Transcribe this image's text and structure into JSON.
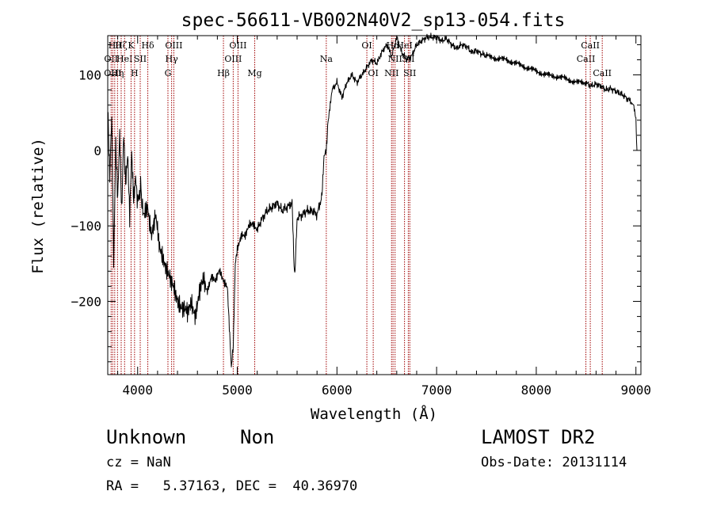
{
  "chart_data": {
    "type": "line",
    "title": "spec-56611-VB002N40V2_sp13-054.fits",
    "xlabel": "Wavelength (Å)",
    "ylabel": "Flux (relative)",
    "xlim": [
      3700,
      9050
    ],
    "ylim": [
      -297,
      152
    ],
    "xticks": [
      4000,
      5000,
      6000,
      7000,
      8000,
      9000
    ],
    "xtick_labels": [
      "4000",
      "5000",
      "6000",
      "7000",
      "8000",
      "9000"
    ],
    "yticks": [
      -200,
      -100,
      0,
      100
    ],
    "ytick_labels": [
      "−200",
      "−100",
      "0",
      "100"
    ],
    "line_color": "#000000",
    "marker_color": "#a00000",
    "grid": false,
    "series": [
      {
        "x": [
          3700,
          3720,
          3740,
          3760,
          3780,
          3800,
          3820,
          3840,
          3860,
          3880,
          3900,
          3920,
          3940,
          3960,
          3980,
          4000,
          4030,
          4060,
          4100,
          4140,
          4180,
          4220,
          4260,
          4300,
          4340,
          4380,
          4420,
          4460,
          4500,
          4540,
          4580,
          4620,
          4660,
          4700,
          4740,
          4780,
          4820,
          4860,
          4900,
          4940,
          4960,
          4980,
          5000,
          5040,
          5080,
          5120,
          5160,
          5200,
          5250,
          5300,
          5350,
          5400,
          5450,
          5500,
          5550,
          5570,
          5580,
          5590,
          5600,
          5650,
          5700,
          5750,
          5800,
          5850,
          5870,
          5890,
          5900,
          5910,
          5925,
          5950,
          6000,
          6050,
          6100,
          6150,
          6200,
          6250,
          6300,
          6350,
          6400,
          6450,
          6500,
          6550,
          6600,
          6650,
          6700,
          6750,
          6800,
          6850,
          6900,
          6950,
          7000,
          7050,
          7100,
          7150,
          7200,
          7250,
          7300,
          7350,
          7400,
          7450,
          7500,
          7600,
          7700,
          7800,
          7900,
          8000,
          8100,
          8200,
          8300,
          8400,
          8500,
          8550,
          8600,
          8650,
          8700,
          8750,
          8800,
          8850,
          8900,
          8950,
          8975,
          9000,
          9010
        ],
        "y": [
          60,
          -40,
          40,
          -150,
          10,
          -60,
          30,
          -80,
          20,
          -50,
          -10,
          -90,
          0,
          -60,
          -30,
          -70,
          -50,
          -90,
          -70,
          -110,
          -90,
          -130,
          -140,
          -160,
          -180,
          -190,
          -200,
          -210,
          -220,
          -200,
          -215,
          -190,
          -175,
          -185,
          -165,
          -175,
          -160,
          -170,
          -180,
          -290,
          -260,
          -150,
          -130,
          -110,
          -115,
          -100,
          -95,
          -105,
          -90,
          -80,
          -75,
          -70,
          -80,
          -75,
          -70,
          -155,
          -165,
          -120,
          -90,
          -85,
          -80,
          -80,
          -85,
          -60,
          -10,
          0,
          10,
          40,
          50,
          80,
          90,
          70,
          90,
          100,
          90,
          100,
          110,
          120,
          115,
          130,
          140,
          125,
          150,
          130,
          120,
          125,
          140,
          145,
          150,
          150,
          150,
          145,
          148,
          140,
          135,
          140,
          138,
          130,
          132,
          128,
          125,
          122,
          120,
          115,
          110,
          105,
          100,
          98,
          95,
          90,
          90,
          85,
          88,
          85,
          80,
          82,
          78,
          75,
          70,
          65,
          60,
          40,
          0
        ]
      }
    ],
    "line_markers": [
      {
        "x": 3734,
        "label": "OII",
        "row": 1
      },
      {
        "x": 3750,
        "label": "OIII",
        "row": 2
      },
      {
        "x": 3770,
        "label": "Hθ",
        "row": 0
      },
      {
        "x": 3798,
        "label": "Hη",
        "row": 2
      },
      {
        "x": 3835,
        "label": "Hζ",
        "row": 0
      },
      {
        "x": 3869,
        "label": "HeI",
        "row": 1
      },
      {
        "x": 3934,
        "label": "K",
        "row": 0
      },
      {
        "x": 3969,
        "label": "H",
        "row": 2
      },
      {
        "x": 4026,
        "label": "SII",
        "row": 1
      },
      {
        "x": 4102,
        "label": "Hδ",
        "row": 0
      },
      {
        "x": 4304,
        "label": "G",
        "row": 2
      },
      {
        "x": 4341,
        "label": "Hγ",
        "row": 1
      },
      {
        "x": 4363,
        "label": "OIII",
        "row": 0
      },
      {
        "x": 4861,
        "label": "Hβ",
        "row": 2
      },
      {
        "x": 4959,
        "label": "OIII",
        "row": 1
      },
      {
        "x": 5007,
        "label": "OIII",
        "row": 0
      },
      {
        "x": 5175,
        "label": "Mg",
        "row": 2
      },
      {
        "x": 5893,
        "label": "Na",
        "row": 1
      },
      {
        "x": 6300,
        "label": "OI",
        "row": 0
      },
      {
        "x": 6364,
        "label": "OI",
        "row": 2
      },
      {
        "x": 6548,
        "label": "NII",
        "row": 2
      },
      {
        "x": 6563,
        "label": "Hα",
        "row": 0
      },
      {
        "x": 6583,
        "label": "NII",
        "row": 1
      },
      {
        "x": 6678,
        "label": "HeI",
        "row": 0
      },
      {
        "x": 6716,
        "label": "SII",
        "row": 1
      },
      {
        "x": 6731,
        "label": "SII",
        "row": 2
      },
      {
        "x": 8498,
        "label": "CaII",
        "row": 1
      },
      {
        "x": 8542,
        "label": "CaII",
        "row": 0
      },
      {
        "x": 8662,
        "label": "CaII",
        "row": 2
      }
    ]
  },
  "info": {
    "class": "Unknown",
    "subclass": "Non",
    "survey": "LAMOST DR2",
    "cz": "cz = NaN",
    "obs_date": "Obs-Date: 20131114",
    "coords": "RA =   5.37163, DEC =  40.36970"
  }
}
